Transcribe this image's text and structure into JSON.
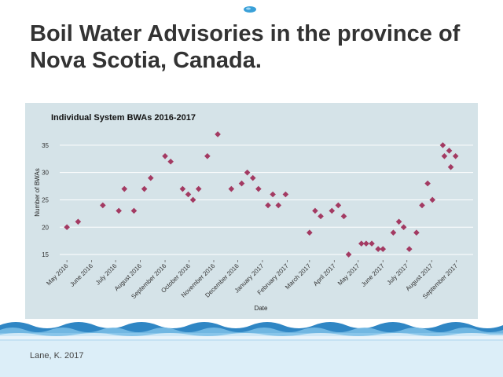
{
  "slide": {
    "title": "Boil Water Advisories in the province of Nova Scotia, Canada.",
    "citation": "Lane, K. 2017"
  },
  "colors": {
    "panel_background": "#d5e3e8",
    "gridline": "#ffffff",
    "marker": "#a33a62",
    "title_text": "#333333",
    "water": "#bcdcef"
  },
  "chart_data": {
    "type": "scatter",
    "title": "Individual System BWAs 2016-2017",
    "xlabel": "Date",
    "ylabel": "Number of BWAs",
    "marker_shape": "diamond",
    "grid": true,
    "legend": "none",
    "xlim": [
      "2016-04-22",
      "2017-09-22"
    ],
    "ylim": [
      14,
      38
    ],
    "yticks": [
      15,
      20,
      25,
      30,
      35
    ],
    "xticks": [
      {
        "date": "2016-05-01",
        "label": "May 2016"
      },
      {
        "date": "2016-06-01",
        "label": "June 2016"
      },
      {
        "date": "2016-07-01",
        "label": "July 2016"
      },
      {
        "date": "2016-08-01",
        "label": "August 2016"
      },
      {
        "date": "2016-09-01",
        "label": "September 2016"
      },
      {
        "date": "2016-10-01",
        "label": "October 2016"
      },
      {
        "date": "2016-11-01",
        "label": "November 2016"
      },
      {
        "date": "2016-12-01",
        "label": "December 2016"
      },
      {
        "date": "2017-01-01",
        "label": "January 2017"
      },
      {
        "date": "2017-02-01",
        "label": "February 2017"
      },
      {
        "date": "2017-03-01",
        "label": "March 2017"
      },
      {
        "date": "2017-04-01",
        "label": "April 2017"
      },
      {
        "date": "2017-05-01",
        "label": "May 2017"
      },
      {
        "date": "2017-06-01",
        "label": "June 2017"
      },
      {
        "date": "2017-07-01",
        "label": "July 2017"
      },
      {
        "date": "2017-08-01",
        "label": "August 2017"
      },
      {
        "date": "2017-09-01",
        "label": "September 2017"
      }
    ],
    "points": [
      {
        "x": "2016-05-01",
        "y": 20
      },
      {
        "x": "2016-05-15",
        "y": 21
      },
      {
        "x": "2016-06-15",
        "y": 24
      },
      {
        "x": "2016-07-05",
        "y": 23
      },
      {
        "x": "2016-07-12",
        "y": 27
      },
      {
        "x": "2016-07-24",
        "y": 23
      },
      {
        "x": "2016-08-06",
        "y": 27
      },
      {
        "x": "2016-08-14",
        "y": 29
      },
      {
        "x": "2016-09-01",
        "y": 33
      },
      {
        "x": "2016-09-08",
        "y": 32
      },
      {
        "x": "2016-09-23",
        "y": 27
      },
      {
        "x": "2016-09-30",
        "y": 26
      },
      {
        "x": "2016-10-06",
        "y": 25
      },
      {
        "x": "2016-10-13",
        "y": 27
      },
      {
        "x": "2016-10-24",
        "y": 33
      },
      {
        "x": "2016-11-06",
        "y": 37
      },
      {
        "x": "2016-11-23",
        "y": 27
      },
      {
        "x": "2016-12-06",
        "y": 28
      },
      {
        "x": "2016-12-13",
        "y": 30
      },
      {
        "x": "2016-12-20",
        "y": 29
      },
      {
        "x": "2016-12-27",
        "y": 27
      },
      {
        "x": "2017-01-08",
        "y": 24
      },
      {
        "x": "2017-01-14",
        "y": 26
      },
      {
        "x": "2017-01-21",
        "y": 24
      },
      {
        "x": "2017-01-30",
        "y": 26
      },
      {
        "x": "2017-03-01",
        "y": 19
      },
      {
        "x": "2017-03-08",
        "y": 23
      },
      {
        "x": "2017-03-15",
        "y": 22
      },
      {
        "x": "2017-03-29",
        "y": 23
      },
      {
        "x": "2017-04-06",
        "y": 24
      },
      {
        "x": "2017-04-13",
        "y": 22
      },
      {
        "x": "2017-04-19",
        "y": 15
      },
      {
        "x": "2017-05-05",
        "y": 17
      },
      {
        "x": "2017-05-11",
        "y": 17
      },
      {
        "x": "2017-05-18",
        "y": 17
      },
      {
        "x": "2017-05-26",
        "y": 16
      },
      {
        "x": "2017-06-01",
        "y": 16
      },
      {
        "x": "2017-06-14",
        "y": 19
      },
      {
        "x": "2017-06-21",
        "y": 21
      },
      {
        "x": "2017-06-27",
        "y": 20
      },
      {
        "x": "2017-07-04",
        "y": 16
      },
      {
        "x": "2017-07-13",
        "y": 19
      },
      {
        "x": "2017-07-20",
        "y": 24
      },
      {
        "x": "2017-07-27",
        "y": 28
      },
      {
        "x": "2017-08-02",
        "y": 25
      },
      {
        "x": "2017-08-15",
        "y": 35
      },
      {
        "x": "2017-08-17",
        "y": 33
      },
      {
        "x": "2017-08-23",
        "y": 34
      },
      {
        "x": "2017-08-25",
        "y": 31
      },
      {
        "x": "2017-08-31",
        "y": 33
      }
    ]
  }
}
